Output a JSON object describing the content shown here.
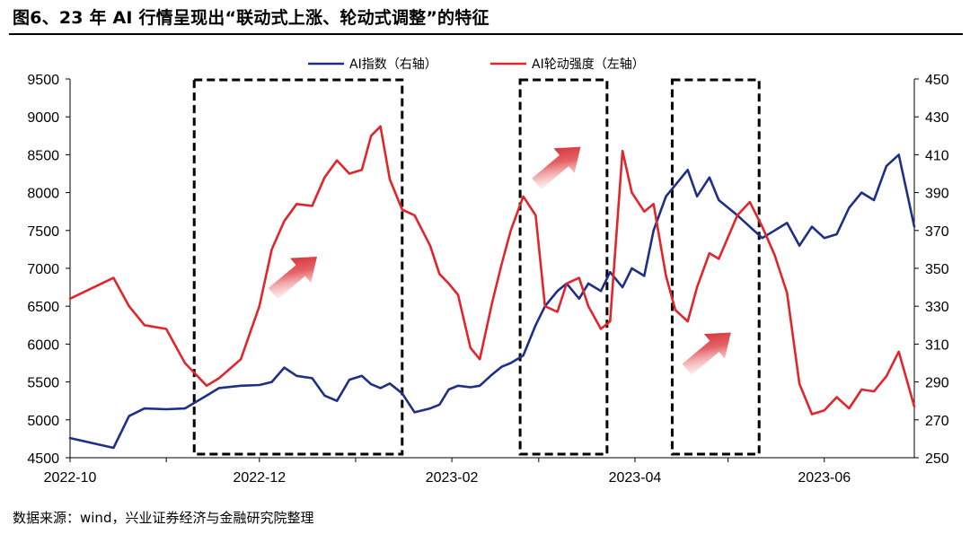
{
  "title": "图6、23 年 AI 行情呈现出“联动式上涨、轮动式调整”的特征",
  "source": "数据来源：wind，兴业证券经济与金融研究院整理",
  "colors": {
    "index": "#1f2f86",
    "rotation": "#e0252b",
    "arrow": "#d9282f",
    "box": "#000000"
  },
  "chart_data": {
    "type": "line",
    "x_ticks": [
      "2022-10",
      "2022-12",
      "2023-02",
      "2023-04",
      "2023-06"
    ],
    "x_range": [
      "2022-10-01",
      "2023-06-30"
    ],
    "y_left": {
      "ylim": [
        4500,
        9500
      ],
      "ticks": [
        "4500",
        "5000",
        "5500",
        "6000",
        "6500",
        "7000",
        "7500",
        "8000",
        "8500",
        "9000",
        "9500"
      ]
    },
    "y_right": {
      "ylim": [
        250,
        450
      ],
      "ticks": [
        "250",
        "270",
        "290",
        "310",
        "330",
        "350",
        "370",
        "390",
        "410",
        "430",
        "450"
      ]
    },
    "legend": {
      "placement": "top-center"
    },
    "grid": false,
    "series": [
      {
        "name": "AI指数（右轴）",
        "axis": "left",
        "color": "#1f2f86",
        "x": [
          "2022-10-01",
          "2022-10-15",
          "2022-10-20",
          "2022-10-25",
          "2022-11-01",
          "2022-11-07",
          "2022-11-14",
          "2022-11-18",
          "2022-11-25",
          "2022-12-01",
          "2022-12-05",
          "2022-12-09",
          "2022-12-13",
          "2022-12-18",
          "2022-12-22",
          "2022-12-26",
          "2022-12-30",
          "2023-01-03",
          "2023-01-06",
          "2023-01-09",
          "2023-01-12",
          "2023-01-16",
          "2023-01-20",
          "2023-01-25",
          "2023-01-28",
          "2023-01-31",
          "2023-02-03",
          "2023-02-07",
          "2023-02-10",
          "2023-02-14",
          "2023-02-17",
          "2023-02-20",
          "2023-02-24",
          "2023-02-28",
          "2023-03-03",
          "2023-03-07",
          "2023-03-10",
          "2023-03-14",
          "2023-03-17",
          "2023-03-21",
          "2023-03-24",
          "2023-03-28",
          "2023-03-31",
          "2023-04-04",
          "2023-04-07",
          "2023-04-11",
          "2023-04-14",
          "2023-04-18",
          "2023-04-21",
          "2023-04-25",
          "2023-04-28",
          "2023-05-04",
          "2023-05-08",
          "2023-05-12",
          "2023-05-16",
          "2023-05-20",
          "2023-05-24",
          "2023-05-28",
          "2023-06-01",
          "2023-06-05",
          "2023-06-09",
          "2023-06-13",
          "2023-06-17",
          "2023-06-21",
          "2023-06-25",
          "2023-06-30"
        ],
        "values": [
          4760,
          4630,
          5050,
          5150,
          5140,
          5150,
          5320,
          5420,
          5450,
          5460,
          5500,
          5690,
          5580,
          5550,
          5320,
          5250,
          5530,
          5580,
          5470,
          5420,
          5480,
          5350,
          5100,
          5150,
          5200,
          5400,
          5450,
          5430,
          5450,
          5600,
          5700,
          5750,
          5850,
          6250,
          6500,
          6700,
          6800,
          6600,
          6800,
          6700,
          6950,
          6750,
          7000,
          6900,
          7500,
          7950,
          8100,
          8300,
          7950,
          8200,
          7900,
          7700,
          7550,
          7400,
          7500,
          7600,
          7300,
          7550,
          7400,
          7450,
          7800,
          8000,
          7900,
          8350,
          8500,
          7550
        ]
      },
      {
        "name": "AI轮动强度（左轴）",
        "axis": "right",
        "color": "#e0252b",
        "x": [
          "2022-10-01",
          "2022-10-15",
          "2022-10-20",
          "2022-10-25",
          "2022-11-01",
          "2022-11-07",
          "2022-11-14",
          "2022-11-18",
          "2022-11-25",
          "2022-12-01",
          "2022-12-05",
          "2022-12-09",
          "2022-12-13",
          "2022-12-18",
          "2022-12-22",
          "2022-12-26",
          "2022-12-30",
          "2023-01-03",
          "2023-01-06",
          "2023-01-09",
          "2023-01-12",
          "2023-01-16",
          "2023-01-20",
          "2023-01-25",
          "2023-01-28",
          "2023-01-31",
          "2023-02-03",
          "2023-02-07",
          "2023-02-10",
          "2023-02-14",
          "2023-02-17",
          "2023-02-20",
          "2023-02-24",
          "2023-02-28",
          "2023-03-03",
          "2023-03-07",
          "2023-03-10",
          "2023-03-14",
          "2023-03-17",
          "2023-03-21",
          "2023-03-24",
          "2023-03-28",
          "2023-03-31",
          "2023-04-04",
          "2023-04-07",
          "2023-04-11",
          "2023-04-14",
          "2023-04-18",
          "2023-04-21",
          "2023-04-25",
          "2023-04-28",
          "2023-05-04",
          "2023-05-08",
          "2023-05-12",
          "2023-05-16",
          "2023-05-20",
          "2023-05-24",
          "2023-05-28",
          "2023-06-01",
          "2023-06-05",
          "2023-06-09",
          "2023-06-13",
          "2023-06-17",
          "2023-06-21",
          "2023-06-25",
          "2023-06-30"
        ],
        "values": [
          334,
          345,
          330,
          320,
          318,
          300,
          288,
          292,
          302,
          330,
          360,
          375,
          384,
          383,
          398,
          407,
          400,
          402,
          420,
          425,
          397,
          381,
          378,
          362,
          347,
          342,
          336,
          308,
          302,
          332,
          352,
          370,
          388,
          378,
          330,
          327,
          342,
          345,
          330,
          318,
          322,
          412,
          390,
          380,
          384,
          346,
          328,
          322,
          340,
          358,
          355,
          378,
          385,
          372,
          357,
          337,
          289,
          273,
          275,
          282,
          276,
          286,
          285,
          293,
          306,
          277
        ]
      }
    ],
    "highlight_boxes": [
      {
        "from": "2022-11-10",
        "to": "2023-01-16"
      },
      {
        "from": "2023-02-23",
        "to": "2023-03-23"
      },
      {
        "from": "2023-04-13",
        "to": "2023-05-11"
      }
    ]
  }
}
